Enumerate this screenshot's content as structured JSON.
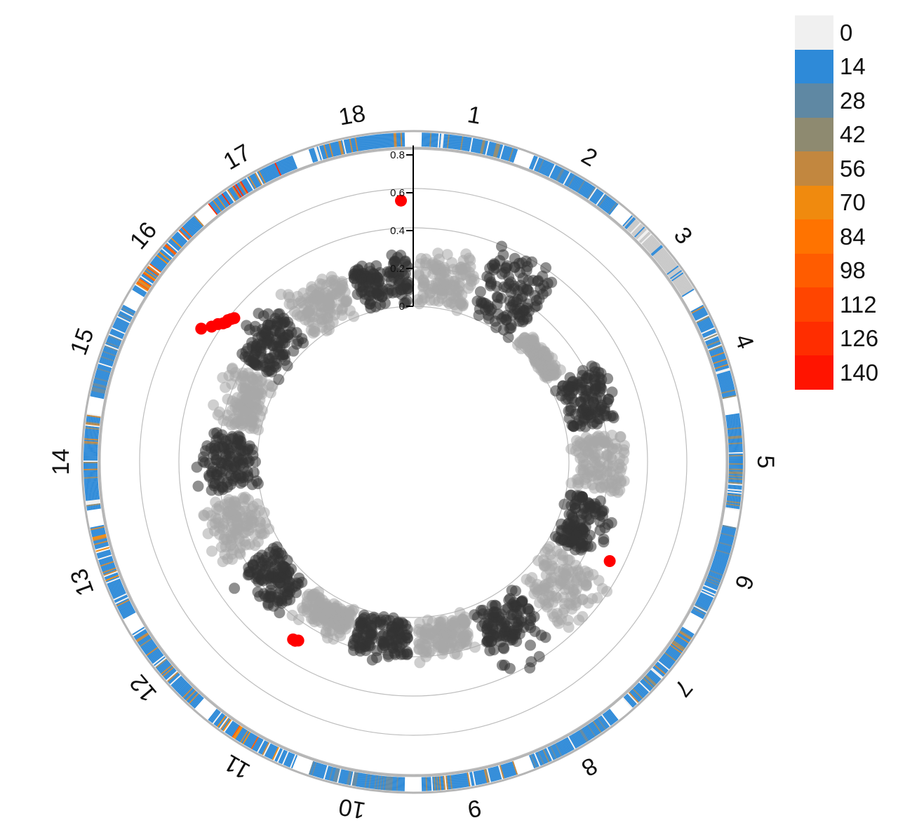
{
  "chart_data": {
    "type": "scatter",
    "title": "",
    "layout": "circular manhattan plot with outer marker-density ring",
    "chromosomes": [
      "1",
      "2",
      "3",
      "4",
      "5",
      "6",
      "7",
      "8",
      "9",
      "10",
      "11",
      "12",
      "13",
      "14",
      "15",
      "16",
      "17",
      "18"
    ],
    "radial_axis": {
      "ticks": [
        "0",
        "0.2",
        "0.4",
        "0.6",
        "0.8"
      ],
      "range": [
        0,
        0.85
      ]
    },
    "series_colors": {
      "odd": "#a8a8a8",
      "even": "#333333",
      "highlight": "#ff0000"
    },
    "chromosome_signal": [
      {
        "chr": "1",
        "base": 0.2,
        "spread": 0.06,
        "max": 0.33
      },
      {
        "chr": "2",
        "base": 0.3,
        "spread": 0.07,
        "max": 0.42
      },
      {
        "chr": "3",
        "base": 0.03,
        "spread": 0.04,
        "max": 0.1
      },
      {
        "chr": "4",
        "base": 0.22,
        "spread": 0.05,
        "max": 0.3
      },
      {
        "chr": "5",
        "base": 0.23,
        "spread": 0.06,
        "max": 0.3
      },
      {
        "chr": "6",
        "base": 0.13,
        "spread": 0.07,
        "max": 0.3
      },
      {
        "chr": "7",
        "base": 0.27,
        "spread": 0.08,
        "max": 0.44
      },
      {
        "chr": "8",
        "base": 0.22,
        "spread": 0.08,
        "max": 0.43
      },
      {
        "chr": "9",
        "base": 0.14,
        "spread": 0.06,
        "max": 0.25
      },
      {
        "chr": "10",
        "base": 0.14,
        "spread": 0.06,
        "max": 0.25
      },
      {
        "chr": "11",
        "base": 0.1,
        "spread": 0.06,
        "max": 0.22
      },
      {
        "chr": "12",
        "base": 0.19,
        "spread": 0.07,
        "max": 0.36
      },
      {
        "chr": "13",
        "base": 0.22,
        "spread": 0.07,
        "max": 0.35
      },
      {
        "chr": "14",
        "base": 0.21,
        "spread": 0.06,
        "max": 0.33
      },
      {
        "chr": "15",
        "base": 0.14,
        "spread": 0.06,
        "max": 0.3
      },
      {
        "chr": "16",
        "base": 0.21,
        "spread": 0.06,
        "max": 0.33
      },
      {
        "chr": "17",
        "base": 0.2,
        "spread": 0.06,
        "max": 0.33
      },
      {
        "chr": "18",
        "base": 0.2,
        "spread": 0.06,
        "max": 0.33
      }
    ],
    "highlighted_points": [
      {
        "chr": "18",
        "pos": 0.93,
        "value": 0.56
      },
      {
        "chr": "16",
        "pos": 0.04,
        "value": 0.5
      },
      {
        "chr": "16",
        "pos": 0.14,
        "value": 0.46
      },
      {
        "chr": "16",
        "pos": 0.22,
        "value": 0.44
      },
      {
        "chr": "16",
        "pos": 0.27,
        "value": 0.42
      },
      {
        "chr": "16",
        "pos": 0.31,
        "value": 0.41
      },
      {
        "chr": "16",
        "pos": 0.35,
        "value": 0.41
      },
      {
        "chr": "16",
        "pos": 0.39,
        "value": 0.4
      },
      {
        "chr": "16",
        "pos": 0.43,
        "value": 0.39
      },
      {
        "chr": "6",
        "pos": 0.9,
        "value": 0.34
      },
      {
        "chr": "11",
        "pos": 0.66,
        "value": 0.3
      },
      {
        "chr": "11",
        "pos": 0.7,
        "value": 0.31
      },
      {
        "chr": "11",
        "pos": 0.74,
        "value": 0.31
      }
    ],
    "legend": {
      "title": "",
      "entries": [
        {
          "label": "0",
          "color": "#f0f0f0"
        },
        {
          "label": "14",
          "color": "#2e8ad8"
        },
        {
          "label": "28",
          "color": "#5f88a3"
        },
        {
          "label": "42",
          "color": "#8e8a70"
        },
        {
          "label": "56",
          "color": "#c2873f"
        },
        {
          "label": "70",
          "color": "#f08a0e"
        },
        {
          "label": "84",
          "color": "#ff7300"
        },
        {
          "label": "98",
          "color": "#ff5c00"
        },
        {
          "label": "112",
          "color": "#ff4500"
        },
        {
          "label": "126",
          "color": "#ff2d00"
        },
        {
          "label": "140",
          "color": "#ff1400"
        }
      ]
    },
    "density_ring": {
      "colors_by_chr": [
        {
          "chr": "1",
          "main": "#2e8ad8",
          "accents": [
            "#8e8a70"
          ]
        },
        {
          "chr": "2",
          "main": "#2e8ad8",
          "accents": [
            "#5f88a3"
          ]
        },
        {
          "chr": "3",
          "main": "#c8c8c8",
          "accents": [
            "#2e8ad8"
          ]
        },
        {
          "chr": "4",
          "main": "#2e8ad8",
          "accents": [
            "#8e8a70",
            "#c2873f"
          ]
        },
        {
          "chr": "5",
          "main": "#2e8ad8",
          "accents": [
            "#8e8a70"
          ]
        },
        {
          "chr": "6",
          "main": "#2e8ad8",
          "accents": [
            "#5f88a3"
          ]
        },
        {
          "chr": "7",
          "main": "#2e8ad8",
          "accents": [
            "#c2873f",
            "#8e8a70"
          ]
        },
        {
          "chr": "8",
          "main": "#2e8ad8",
          "accents": [
            "#8e8a70",
            "#5f88a3"
          ]
        },
        {
          "chr": "9",
          "main": "#2e8ad8",
          "accents": [
            "#8e8a70",
            "#c2873f"
          ]
        },
        {
          "chr": "10",
          "main": "#2e8ad8",
          "accents": [
            "#5f88a3"
          ]
        },
        {
          "chr": "11",
          "main": "#2e8ad8",
          "accents": [
            "#f08a0e",
            "#ff5c00",
            "#c2873f"
          ]
        },
        {
          "chr": "12",
          "main": "#2e8ad8",
          "accents": [
            "#8e8a70",
            "#c2873f"
          ]
        },
        {
          "chr": "13",
          "main": "#2e8ad8",
          "accents": [
            "#f08a0e",
            "#c2873f"
          ]
        },
        {
          "chr": "14",
          "main": "#2e8ad8",
          "accents": [
            "#8e8a70",
            "#c2873f"
          ]
        },
        {
          "chr": "15",
          "main": "#2e8ad8",
          "accents": [
            "#5f88a3"
          ]
        },
        {
          "chr": "16",
          "main": "#2e8ad8",
          "accents": [
            "#f08a0e",
            "#c2873f",
            "#ff5c00"
          ]
        },
        {
          "chr": "17",
          "main": "#2e8ad8",
          "accents": [
            "#ff2d00",
            "#c2873f"
          ]
        },
        {
          "chr": "18",
          "main": "#2e8ad8",
          "accents": [
            "#c2873f"
          ]
        }
      ]
    }
  }
}
